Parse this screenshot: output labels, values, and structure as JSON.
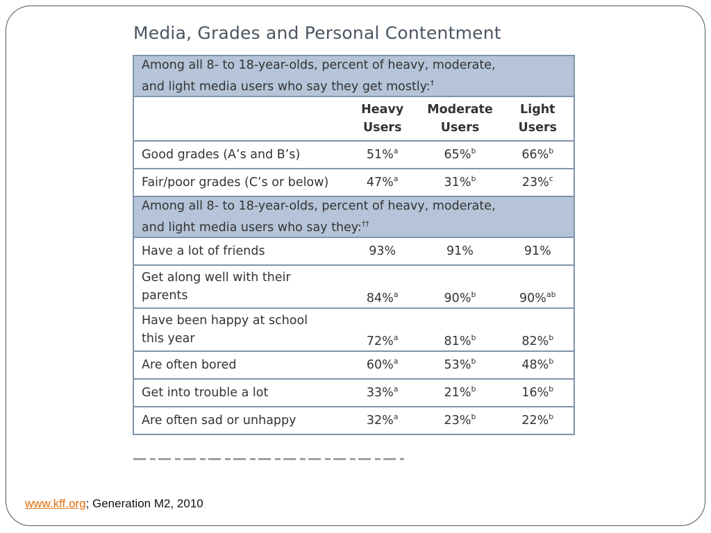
{
  "chart_data": {
    "type": "table",
    "title": "Media, Grades and Personal Contentment",
    "columns": [
      "Heavy Users",
      "Moderate Users",
      "Light Users"
    ],
    "sections": [
      {
        "heading_line1": "Among all 8- to 18-year-olds, percent of heavy, moderate,",
        "heading_line2": "and light media users who say they get mostly:",
        "heading_mark": "†",
        "rows": [
          {
            "label": "Good grades (A’s and B’s)",
            "values": [
              "51%",
              "65%",
              "66%"
            ],
            "sups": [
              "a",
              "b",
              "b"
            ]
          },
          {
            "label": "Fair/poor grades (C’s or below)",
            "values": [
              "47%",
              "31%",
              "23%"
            ],
            "sups": [
              "a",
              "b",
              "c"
            ]
          }
        ]
      },
      {
        "heading_line1": "Among all 8- to 18-year-olds, percent of heavy, moderate,",
        "heading_line2": "and light media users who say they:",
        "heading_mark": "††",
        "rows": [
          {
            "label": "Have a lot of friends",
            "values": [
              "93%",
              "91%",
              "91%"
            ],
            "sups": [
              "",
              "",
              ""
            ]
          },
          {
            "label_line1": "Get along well with their",
            "label_line2": "parents",
            "values": [
              "84%",
              "90%",
              "90%"
            ],
            "sups": [
              "a",
              "b",
              "ab"
            ]
          },
          {
            "label_line1": "Have been happy at school",
            "label_line2": "this year",
            "values": [
              "72%",
              "81%",
              "82%"
            ],
            "sups": [
              "a",
              "b",
              "b"
            ]
          },
          {
            "label": "Are often bored",
            "values": [
              "60%",
              "53%",
              "48%"
            ],
            "sups": [
              "a",
              "b",
              "b"
            ]
          },
          {
            "label": "Get into trouble a lot",
            "values": [
              "33%",
              "21%",
              "16%"
            ],
            "sups": [
              "a",
              "b",
              "b"
            ]
          },
          {
            "label": "Are often sad or unhappy",
            "values": [
              "32%",
              "23%",
              "22%"
            ],
            "sups": [
              "a",
              "b",
              "b"
            ]
          }
        ]
      }
    ]
  },
  "header": {
    "col1_line1": "Heavy",
    "col1_line2": "Users",
    "col2_line1": "Moderate",
    "col2_line2": "Users",
    "col3_line1": "Light",
    "col3_line2": "Users"
  },
  "source": {
    "link": "www.kff.org",
    "rest": "; Generation M2, 2010"
  },
  "colors": {
    "section_fill": "#b5c4d8",
    "table_border": "#7f93ad",
    "title_text": "#4a5561",
    "link": "#e46c0a"
  }
}
